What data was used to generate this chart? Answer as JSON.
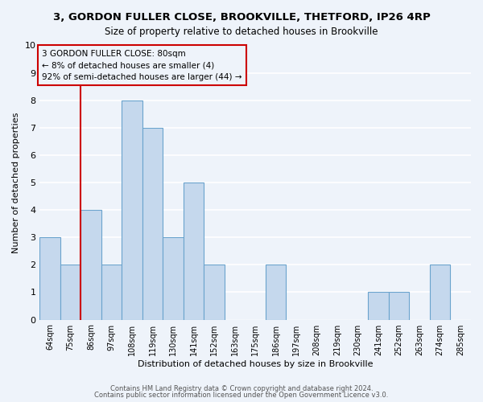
{
  "title1": "3, GORDON FULLER CLOSE, BROOKVILLE, THETFORD, IP26 4RP",
  "title2": "Size of property relative to detached houses in Brookville",
  "xlabel": "Distribution of detached houses by size in Brookville",
  "ylabel": "Number of detached properties",
  "categories": [
    "64sqm",
    "75sqm",
    "86sqm",
    "97sqm",
    "108sqm",
    "119sqm",
    "130sqm",
    "141sqm",
    "152sqm",
    "163sqm",
    "175sqm",
    "186sqm",
    "197sqm",
    "208sqm",
    "219sqm",
    "230sqm",
    "241sqm",
    "252sqm",
    "263sqm",
    "274sqm",
    "285sqm"
  ],
  "values": [
    3,
    2,
    4,
    2,
    8,
    7,
    3,
    5,
    2,
    0,
    0,
    2,
    0,
    0,
    0,
    0,
    1,
    1,
    0,
    2,
    0
  ],
  "bar_color": "#c5d8ed",
  "bar_edge_color": "#6aa3cd",
  "vline_x": 1.5,
  "vline_color": "#cc0000",
  "annotation_line1": "3 GORDON FULLER CLOSE: 80sqm",
  "annotation_line2": "← 8% of detached houses are smaller (4)",
  "annotation_line3": "92% of semi-detached houses are larger (44) →",
  "ylim": [
    0,
    10
  ],
  "yticks": [
    0,
    1,
    2,
    3,
    4,
    5,
    6,
    7,
    8,
    9,
    10
  ],
  "footer1": "Contains HM Land Registry data © Crown copyright and database right 2024.",
  "footer2": "Contains public sector information licensed under the Open Government Licence v3.0.",
  "bg_color": "#eef3fa",
  "grid_color": "#ffffff",
  "title1_fontsize": 9.5,
  "title2_fontsize": 8.5,
  "xlabel_fontsize": 8,
  "ylabel_fontsize": 8,
  "tick_fontsize": 7,
  "ytick_fontsize": 8,
  "footer_fontsize": 6,
  "annot_fontsize": 7.5
}
